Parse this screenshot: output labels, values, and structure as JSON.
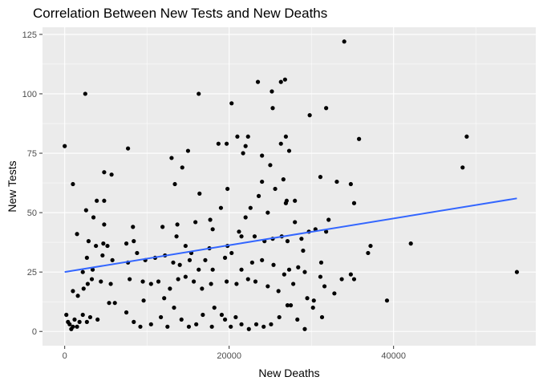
{
  "chart_data": {
    "type": "scatter",
    "title": "Correlation Between New Tests and New Deaths",
    "xlabel": "New Deaths",
    "ylabel": "New Tests",
    "xlim": [
      -2700,
      57300
    ],
    "ylim": [
      -6,
      128
    ],
    "x_ticks": [
      0,
      20000,
      40000
    ],
    "x_tick_labels": [
      "0",
      "20000",
      "40000"
    ],
    "y_ticks": [
      0,
      25,
      50,
      75,
      100,
      125
    ],
    "y_tick_labels": [
      "0",
      "25",
      "50",
      "75",
      "100",
      "125"
    ],
    "grid": true,
    "legend": "none",
    "colors": {
      "panel": "#ebebeb",
      "grid": "#ffffff",
      "points": "#000000",
      "trend": "#3366ff"
    },
    "trend_line": {
      "type": "linear",
      "x": [
        0,
        55000
      ],
      "y": [
        25,
        56
      ]
    },
    "points": [
      [
        0,
        78
      ],
      [
        2500,
        100
      ],
      [
        16300,
        100
      ],
      [
        20300,
        96
      ],
      [
        23500,
        105
      ],
      [
        26800,
        106
      ],
      [
        26300,
        105
      ],
      [
        34000,
        122
      ],
      [
        25200,
        101
      ],
      [
        25300,
        94
      ],
      [
        29800,
        91
      ],
      [
        31800,
        94
      ],
      [
        21000,
        82
      ],
      [
        22300,
        82
      ],
      [
        26900,
        82
      ],
      [
        35800,
        81
      ],
      [
        48900,
        82
      ],
      [
        48400,
        69
      ],
      [
        7700,
        77
      ],
      [
        15000,
        76
      ],
      [
        18700,
        79
      ],
      [
        19700,
        79
      ],
      [
        22000,
        78
      ],
      [
        26300,
        79
      ],
      [
        21700,
        75
      ],
      [
        13000,
        73
      ],
      [
        24000,
        74
      ],
      [
        27300,
        76
      ],
      [
        14300,
        69
      ],
      [
        4800,
        67
      ],
      [
        5700,
        66
      ],
      [
        25000,
        70
      ],
      [
        1000,
        62
      ],
      [
        3900,
        55
      ],
      [
        2600,
        51
      ],
      [
        4800,
        55
      ],
      [
        3500,
        48
      ],
      [
        4800,
        45
      ],
      [
        8300,
        44
      ],
      [
        11900,
        44
      ],
      [
        13400,
        62
      ],
      [
        16400,
        58
      ],
      [
        19800,
        60
      ],
      [
        24000,
        63
      ],
      [
        25600,
        60
      ],
      [
        26600,
        64
      ],
      [
        27000,
        55
      ],
      [
        31100,
        65
      ],
      [
        33100,
        63
      ],
      [
        34800,
        62
      ],
      [
        35200,
        54
      ],
      [
        15900,
        46
      ],
      [
        17700,
        47
      ],
      [
        19000,
        52
      ],
      [
        22600,
        52
      ],
      [
        23600,
        57
      ],
      [
        26900,
        54
      ],
      [
        28000,
        46
      ],
      [
        30500,
        43
      ],
      [
        31800,
        42
      ],
      [
        32100,
        47
      ],
      [
        13700,
        45
      ],
      [
        18000,
        43
      ],
      [
        21200,
        42
      ],
      [
        22000,
        48
      ],
      [
        24700,
        50
      ],
      [
        28000,
        55
      ],
      [
        1500,
        41
      ],
      [
        2900,
        38
      ],
      [
        3800,
        36
      ],
      [
        4700,
        37
      ],
      [
        5200,
        36
      ],
      [
        7500,
        37
      ],
      [
        8400,
        38
      ],
      [
        13600,
        40
      ],
      [
        14700,
        36
      ],
      [
        15400,
        33
      ],
      [
        17600,
        35
      ],
      [
        19800,
        36
      ],
      [
        20300,
        33
      ],
      [
        21500,
        40
      ],
      [
        23100,
        40
      ],
      [
        24300,
        38
      ],
      [
        25300,
        39
      ],
      [
        26400,
        40
      ],
      [
        27100,
        38
      ],
      [
        28800,
        39
      ],
      [
        29000,
        34
      ],
      [
        29700,
        42
      ],
      [
        31200,
        29
      ],
      [
        36900,
        33
      ],
      [
        37200,
        36
      ],
      [
        42100,
        37
      ],
      [
        2200,
        25
      ],
      [
        2700,
        31
      ],
      [
        3400,
        26
      ],
      [
        4600,
        32
      ],
      [
        5800,
        30
      ],
      [
        7700,
        29
      ],
      [
        8800,
        33
      ],
      [
        9800,
        30
      ],
      [
        11000,
        31
      ],
      [
        12200,
        32
      ],
      [
        13200,
        29
      ],
      [
        14000,
        28
      ],
      [
        15200,
        30
      ],
      [
        16300,
        26
      ],
      [
        17100,
        30
      ],
      [
        18000,
        26
      ],
      [
        19500,
        31
      ],
      [
        21500,
        26
      ],
      [
        22800,
        29
      ],
      [
        24000,
        30
      ],
      [
        25400,
        28
      ],
      [
        26700,
        24
      ],
      [
        27300,
        26
      ],
      [
        28400,
        27
      ],
      [
        29200,
        25
      ],
      [
        31100,
        23
      ],
      [
        33700,
        22
      ],
      [
        34800,
        24
      ],
      [
        35200,
        22
      ],
      [
        1000,
        17
      ],
      [
        1600,
        15
      ],
      [
        2300,
        18
      ],
      [
        2800,
        20
      ],
      [
        3300,
        22
      ],
      [
        4400,
        21
      ],
      [
        5600,
        20
      ],
      [
        7900,
        22
      ],
      [
        9500,
        21
      ],
      [
        10500,
        20
      ],
      [
        11400,
        21
      ],
      [
        12800,
        18
      ],
      [
        13800,
        22
      ],
      [
        14700,
        23
      ],
      [
        15700,
        21
      ],
      [
        16700,
        18
      ],
      [
        17800,
        20
      ],
      [
        19700,
        21
      ],
      [
        20900,
        20
      ],
      [
        22300,
        22
      ],
      [
        23200,
        21
      ],
      [
        24700,
        19
      ],
      [
        26000,
        17
      ],
      [
        27800,
        20
      ],
      [
        29500,
        14
      ],
      [
        30300,
        13
      ],
      [
        31600,
        19
      ],
      [
        32800,
        16
      ],
      [
        39200,
        13
      ],
      [
        55000,
        25
      ],
      [
        200,
        7
      ],
      [
        400,
        4
      ],
      [
        600,
        3
      ],
      [
        800,
        1
      ],
      [
        1000,
        2
      ],
      [
        1200,
        5
      ],
      [
        1500,
        2
      ],
      [
        1800,
        4
      ],
      [
        2200,
        7
      ],
      [
        2700,
        4
      ],
      [
        3100,
        6
      ],
      [
        4000,
        5
      ],
      [
        5400,
        12
      ],
      [
        6100,
        12
      ],
      [
        7500,
        8
      ],
      [
        8400,
        4
      ],
      [
        9200,
        2
      ],
      [
        10500,
        3
      ],
      [
        11700,
        6
      ],
      [
        12500,
        2
      ],
      [
        13300,
        10
      ],
      [
        14200,
        5
      ],
      [
        15100,
        2
      ],
      [
        16000,
        3
      ],
      [
        16800,
        7
      ],
      [
        17900,
        2
      ],
      [
        19100,
        7
      ],
      [
        20200,
        2
      ],
      [
        20800,
        6
      ],
      [
        21500,
        3
      ],
      [
        22400,
        1
      ],
      [
        23300,
        3
      ],
      [
        24200,
        2
      ],
      [
        25100,
        3
      ],
      [
        26100,
        6
      ],
      [
        27100,
        11
      ],
      [
        27500,
        11
      ],
      [
        28300,
        5
      ],
      [
        29200,
        1
      ],
      [
        30200,
        10
      ],
      [
        31300,
        6
      ],
      [
        18200,
        10
      ],
      [
        19500,
        5
      ],
      [
        12100,
        14
      ],
      [
        9600,
        13
      ]
    ]
  }
}
